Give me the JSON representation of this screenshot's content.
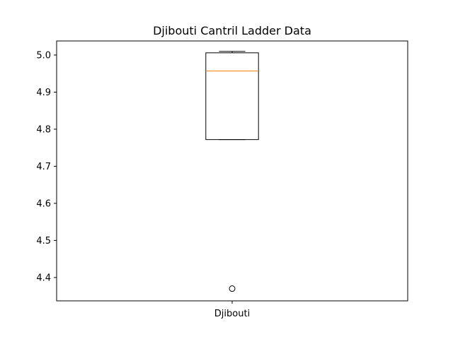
{
  "chart_data": {
    "type": "box",
    "title": "Djibouti Cantril Ladder Data",
    "xlabel": "",
    "ylabel": "",
    "ylim": [
      4.337,
      5.038
    ],
    "y_ticks": [
      "4.4",
      "4.5",
      "4.6",
      "4.7",
      "4.8",
      "4.9",
      "5.0"
    ],
    "grid": false,
    "categories": [
      "Djibouti"
    ],
    "boxes": [
      {
        "label": "Djibouti",
        "whisker_low": 4.772,
        "q1": 4.772,
        "median": 4.957,
        "q3": 5.006,
        "whisker_high": 5.01,
        "outliers": [
          4.37
        ]
      }
    ],
    "colors": {
      "box": "#000000",
      "median": "#ff7f0e",
      "outlier": "#000000"
    }
  }
}
